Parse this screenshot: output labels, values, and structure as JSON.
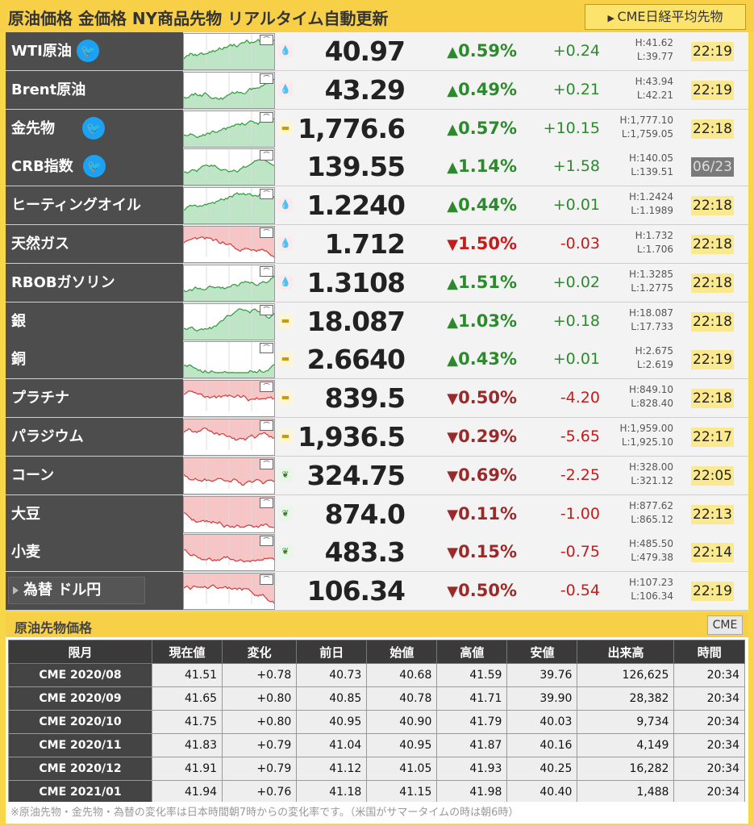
{
  "header": {
    "title": "原油価格 金価格 NY商品先物 リアルタイム自動更新",
    "cme_button": "CME日経平均先物"
  },
  "colors": {
    "up": "#2c8a2c",
    "down": "#c51b1b",
    "accent": "#f7d047",
    "time_badge": "#fbe98f"
  },
  "quotes": [
    {
      "name": "WTI原油",
      "twitter": true,
      "icon": "oil-drop-icon",
      "price": "40.97",
      "pct": "0.59%",
      "dir": "up",
      "change": "+0.24",
      "high": "H:41.62",
      "low": "L:39.77",
      "time": "22:19"
    },
    {
      "name": "Brent原油",
      "twitter": false,
      "icon": "oil-drop-icon",
      "price": "43.29",
      "pct": "0.49%",
      "dir": "up",
      "change": "+0.21",
      "high": "H:43.94",
      "low": "L:42.21",
      "time": "22:19"
    },
    {
      "name": "金先物",
      "twitter": true,
      "icon": "gold-bars-icon",
      "price": "1,776.6",
      "pct": "0.57%",
      "dir": "up",
      "change": "+10.15",
      "high": "H:1,777.10",
      "low": "L:1,759.05",
      "time": "22:18"
    },
    {
      "name": "CRB指数",
      "twitter": true,
      "icon": "",
      "price": "139.55",
      "pct": "1.14%",
      "dir": "up",
      "change": "+1.58",
      "high": "H:140.05",
      "low": "L:139.51",
      "time": "06/23",
      "stale": true
    },
    {
      "name": "ヒーティングオイル",
      "twitter": false,
      "icon": "oil-drop-icon",
      "price": "1.2240",
      "pct": "0.44%",
      "dir": "up",
      "change": "+0.01",
      "high": "H:1.2424",
      "low": "L:1.1989",
      "time": "22:18"
    },
    {
      "name": "天然ガス",
      "twitter": false,
      "icon": "oil-drop-icon",
      "price": "1.712",
      "pct": "1.50%",
      "dir": "down",
      "change": "-0.03",
      "high": "H:1.732",
      "low": "L:1.706",
      "time": "22:18"
    },
    {
      "name": "RBOBガソリン",
      "twitter": false,
      "icon": "oil-drop-icon",
      "price": "1.3108",
      "pct": "1.51%",
      "dir": "up",
      "change": "+0.02",
      "high": "H:1.3285",
      "low": "L:1.2775",
      "time": "22:18"
    },
    {
      "name": "銀",
      "twitter": false,
      "icon": "gold-bars-icon",
      "price": "18.087",
      "pct": "1.03%",
      "dir": "up",
      "change": "+0.18",
      "high": "H:18.087",
      "low": "L:17.733",
      "time": "22:18"
    },
    {
      "name": "銅",
      "twitter": false,
      "icon": "gold-bars-icon",
      "price": "2.6640",
      "pct": "0.43%",
      "dir": "up",
      "change": "+0.01",
      "high": "H:2.675",
      "low": "L:2.619",
      "time": "22:19"
    },
    {
      "name": "プラチナ",
      "twitter": false,
      "icon": "gold-bars-icon",
      "price": "839.5",
      "pct": "0.50%",
      "dir": "down",
      "change": "-4.20",
      "high": "H:849.10",
      "low": "L:828.40",
      "time": "22:18"
    },
    {
      "name": "パラジウム",
      "twitter": false,
      "icon": "gold-bars-icon",
      "price": "1,936.5",
      "pct": "0.29%",
      "dir": "down",
      "change": "-5.65",
      "high": "H:1,959.00",
      "low": "L:1,925.10",
      "time": "22:17"
    },
    {
      "name": "コーン",
      "twitter": false,
      "icon": "wheat-icon",
      "price": "324.75",
      "pct": "0.69%",
      "dir": "down",
      "change": "-2.25",
      "high": "H:328.00",
      "low": "L:321.12",
      "time": "22:05"
    },
    {
      "name": "大豆",
      "twitter": false,
      "icon": "wheat-icon",
      "price": "874.0",
      "pct": "0.11%",
      "dir": "down",
      "change": "-1.00",
      "high": "H:877.62",
      "low": "L:865.12",
      "time": "22:13"
    },
    {
      "name": "小麦",
      "twitter": false,
      "icon": "wheat-icon",
      "price": "483.3",
      "pct": "0.15%",
      "dir": "down",
      "change": "-0.75",
      "high": "H:485.50",
      "low": "L:479.38",
      "time": "22:14"
    },
    {
      "name": "為替 ドル円",
      "twitter": false,
      "icon": "",
      "price": "106.34",
      "pct": "0.50%",
      "dir": "down",
      "change": "-0.54",
      "high": "H:107.23",
      "low": "L:106.34",
      "time": "22:19",
      "fx": true
    }
  ],
  "crude_section": {
    "title": "原油先物価格",
    "tag": "CME",
    "headers": [
      "限月",
      "現在値",
      "変化",
      "前日",
      "始値",
      "高値",
      "安値",
      "出来高",
      "時間"
    ],
    "rows": [
      [
        "CME 2020/08",
        "41.51",
        "+0.78",
        "40.73",
        "40.68",
        "41.59",
        "39.76",
        "126,625",
        "20:34"
      ],
      [
        "CME 2020/09",
        "41.65",
        "+0.80",
        "40.85",
        "40.78",
        "41.71",
        "39.90",
        "28,382",
        "20:34"
      ],
      [
        "CME 2020/10",
        "41.75",
        "+0.80",
        "40.95",
        "40.90",
        "41.79",
        "40.03",
        "9,734",
        "20:34"
      ],
      [
        "CME 2020/11",
        "41.83",
        "+0.79",
        "41.04",
        "40.95",
        "41.87",
        "40.16",
        "4,149",
        "20:34"
      ],
      [
        "CME 2020/12",
        "41.91",
        "+0.79",
        "41.12",
        "41.05",
        "41.93",
        "40.25",
        "16,282",
        "20:34"
      ],
      [
        "CME 2021/01",
        "41.94",
        "+0.76",
        "41.18",
        "41.15",
        "41.98",
        "40.40",
        "1,488",
        "20:34"
      ]
    ]
  },
  "footnote": "※原油先物・金先物・為替の変化率は日本時間朝7時からの変化率です。（米国がサマータイムの時は朝6時）"
}
